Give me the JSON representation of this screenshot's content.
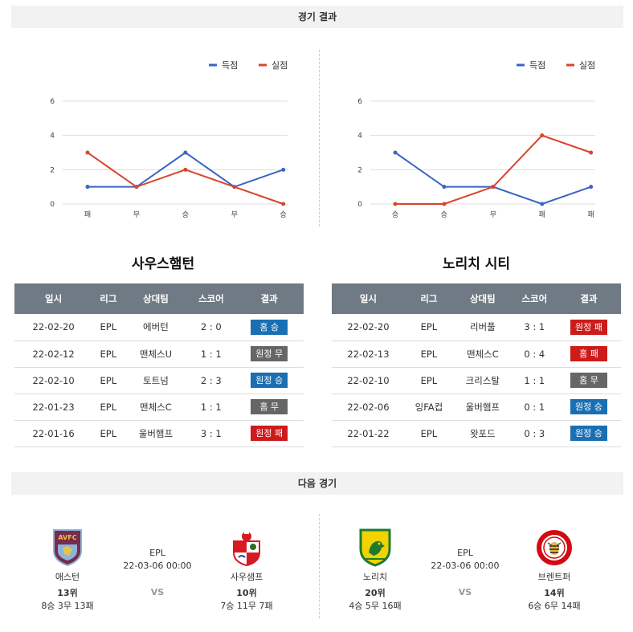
{
  "results_header": "경기 결과",
  "next_header": "다음 경기",
  "legend": {
    "scored": "득점",
    "conceded": "실점"
  },
  "colors": {
    "scored": "#3a63c4",
    "conceded": "#d8442c",
    "win": "#1a6fb3",
    "loss": "#cc1b1b",
    "draw": "#666666"
  },
  "chart_data": [
    {
      "type": "line",
      "categories": [
        "패",
        "무",
        "승",
        "무",
        "승"
      ],
      "ylim": [
        0,
        6
      ],
      "yticks": [
        "0",
        "2",
        "4",
        "6"
      ],
      "series": [
        {
          "name": "득점",
          "values": [
            1,
            1,
            3,
            1,
            2
          ]
        },
        {
          "name": "실점",
          "values": [
            3,
            1,
            2,
            1,
            0
          ]
        }
      ],
      "legend_position": "top-right"
    },
    {
      "type": "line",
      "categories": [
        "승",
        "승",
        "무",
        "패",
        "패"
      ],
      "ylim": [
        0,
        6
      ],
      "yticks": [
        "0",
        "2",
        "4",
        "6"
      ],
      "series": [
        {
          "name": "득점",
          "values": [
            3,
            1,
            1,
            0,
            1
          ]
        },
        {
          "name": "실점",
          "values": [
            0,
            0,
            1,
            4,
            3
          ]
        }
      ],
      "legend_position": "top-right"
    }
  ],
  "table_headers": [
    "일시",
    "리그",
    "상대팀",
    "스코어",
    "결과"
  ],
  "teams": [
    {
      "name": "사우스햄턴",
      "rows": [
        {
          "date": "22-02-20",
          "league": "EPL",
          "opponent": "에버턴",
          "score": "2 : 0",
          "result": "홈 승",
          "type": "win"
        },
        {
          "date": "22-02-12",
          "league": "EPL",
          "opponent": "맨체스U",
          "score": "1 : 1",
          "result": "원정 무",
          "type": "draw"
        },
        {
          "date": "22-02-10",
          "league": "EPL",
          "opponent": "토트넘",
          "score": "2 : 3",
          "result": "원정 승",
          "type": "win"
        },
        {
          "date": "22-01-23",
          "league": "EPL",
          "opponent": "맨체스C",
          "score": "1 : 1",
          "result": "홈 무",
          "type": "draw"
        },
        {
          "date": "22-01-16",
          "league": "EPL",
          "opponent": "울버햄프",
          "score": "3 : 1",
          "result": "원정 패",
          "type": "loss"
        }
      ]
    },
    {
      "name": "노리치 시티",
      "rows": [
        {
          "date": "22-02-20",
          "league": "EPL",
          "opponent": "리버풀",
          "score": "3 : 1",
          "result": "원정 패",
          "type": "loss"
        },
        {
          "date": "22-02-13",
          "league": "EPL",
          "opponent": "맨체스C",
          "score": "0 : 4",
          "result": "홈 패",
          "type": "loss"
        },
        {
          "date": "22-02-10",
          "league": "EPL",
          "opponent": "크리스탈",
          "score": "1 : 1",
          "result": "홈 무",
          "type": "draw"
        },
        {
          "date": "22-02-06",
          "league": "잉FA컵",
          "opponent": "울버햄프",
          "score": "0 : 1",
          "result": "원정 승",
          "type": "win"
        },
        {
          "date": "22-01-22",
          "league": "EPL",
          "opponent": "왓포드",
          "score": "0 : 3",
          "result": "원정 승",
          "type": "win"
        }
      ]
    }
  ],
  "next_matches": [
    {
      "league": "EPL",
      "datetime": "22-03-06 00:00",
      "vs": "VS",
      "home": {
        "name": "애스턴",
        "rank": "13위",
        "record": "8승 3무 13패",
        "logo_text": "AVFC"
      },
      "away": {
        "name": "사우샘프",
        "rank": "10위",
        "record": "7승 11무 7패"
      }
    },
    {
      "league": "EPL",
      "datetime": "22-03-06 00:00",
      "vs": "VS",
      "home": {
        "name": "노리치",
        "rank": "20위",
        "record": "4승 5무 16패"
      },
      "away": {
        "name": "브렌트퍼",
        "rank": "14위",
        "record": "6승 6무 14패"
      }
    }
  ]
}
